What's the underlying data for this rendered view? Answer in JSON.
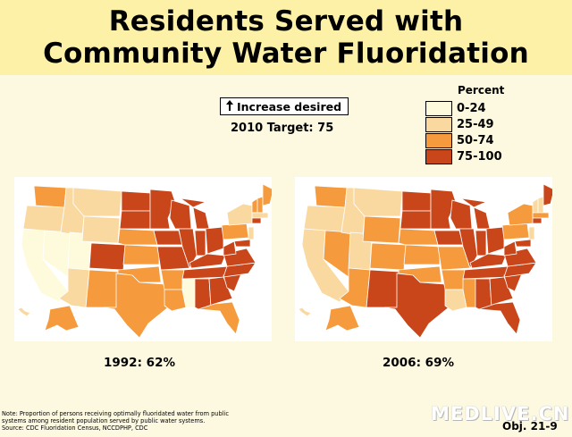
{
  "title": {
    "line1": "Residents Served with",
    "line2": "Community Water Fluoridation"
  },
  "target": {
    "increase_label": "Increase desired",
    "target_label": "2010 Target: 75"
  },
  "legend": {
    "title": "Percent",
    "items": [
      {
        "label": "0-24",
        "color": "#fefbdc"
      },
      {
        "label": "25-49",
        "color": "#fad9a1"
      },
      {
        "label": "50-74",
        "color": "#f59a3d"
      },
      {
        "label": "75-100",
        "color": "#c8461a"
      }
    ]
  },
  "maps": [
    {
      "caption": "1992: 62%"
    },
    {
      "caption": "2006: 69%"
    }
  ],
  "note": {
    "line1": "Note: Proportion of persons receiving optimally fluoridated water from public",
    "line2": "systems among resident population served by public water systems.",
    "line3": "Source: CDC Fluoridation Census, NCCDPHP, CDC"
  },
  "watermark": "MEDLIVE.CN",
  "objective": "Obj. 21-9"
}
